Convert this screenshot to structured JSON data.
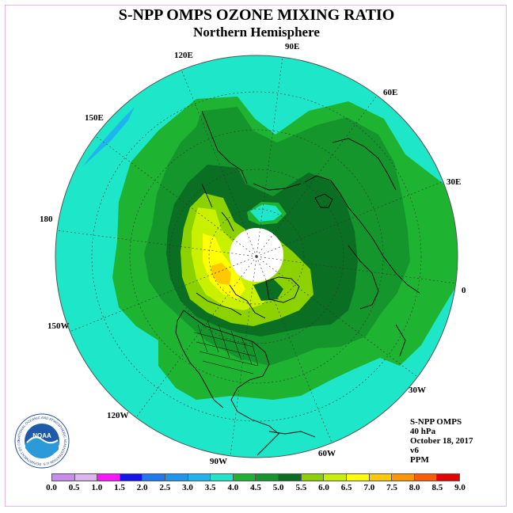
{
  "title": "S-NPP OMPS OZONE MIXING RATIO",
  "subtitle": "Northern Hemisphere",
  "longitude_labels": [
    "90E",
    "60E",
    "30E",
    "0",
    "30W",
    "60W",
    "90W",
    "120W",
    "150W",
    "180",
    "150E",
    "120E"
  ],
  "info": {
    "instrument": "S-NPP OMPS",
    "pressure": "40 hPa",
    "date": "October 18, 2017",
    "version": "v6",
    "units": "PPM"
  },
  "logo": {
    "name": "NOAA",
    "ring_text": "NATIONAL OCEANIC AND ATMOSPHERIC ADMINISTRATION U.S. DEPARTMENT OF COMMERCE"
  },
  "colorbar": {
    "ticks": [
      "0.0",
      "0.5",
      "1.0",
      "1.5",
      "2.0",
      "2.5",
      "3.0",
      "3.5",
      "4.0",
      "4.5",
      "5.0",
      "5.5",
      "6.0",
      "6.5",
      "7.0",
      "7.5",
      "8.0",
      "8.5",
      "9.0"
    ],
    "colors": [
      "#c88cf0",
      "#dcb4f0",
      "#ff14ff",
      "#1414f0",
      "#1e78f0",
      "#1e96f0",
      "#1eb4f0",
      "#1ee6c8",
      "#1eb432",
      "#14962d",
      "#0a6e23",
      "#8cd200",
      "#c8f000",
      "#ffff00",
      "#ffc800",
      "#ff9600",
      "#ff5a00",
      "#e60000",
      "#8c5a3c"
    ]
  },
  "colors": {
    "level_3_5": "#1ee6c8",
    "level_3_0": "#1eb4f0",
    "level_4_0": "#1eb432",
    "level_4_5": "#14962d",
    "level_5_0": "#0a6e23",
    "level_5_5": "#8cd200",
    "level_6_0": "#c8f000",
    "level_6_5": "#ffff00",
    "level_7_0": "#ffc800",
    "no_data": "#ffffff"
  }
}
